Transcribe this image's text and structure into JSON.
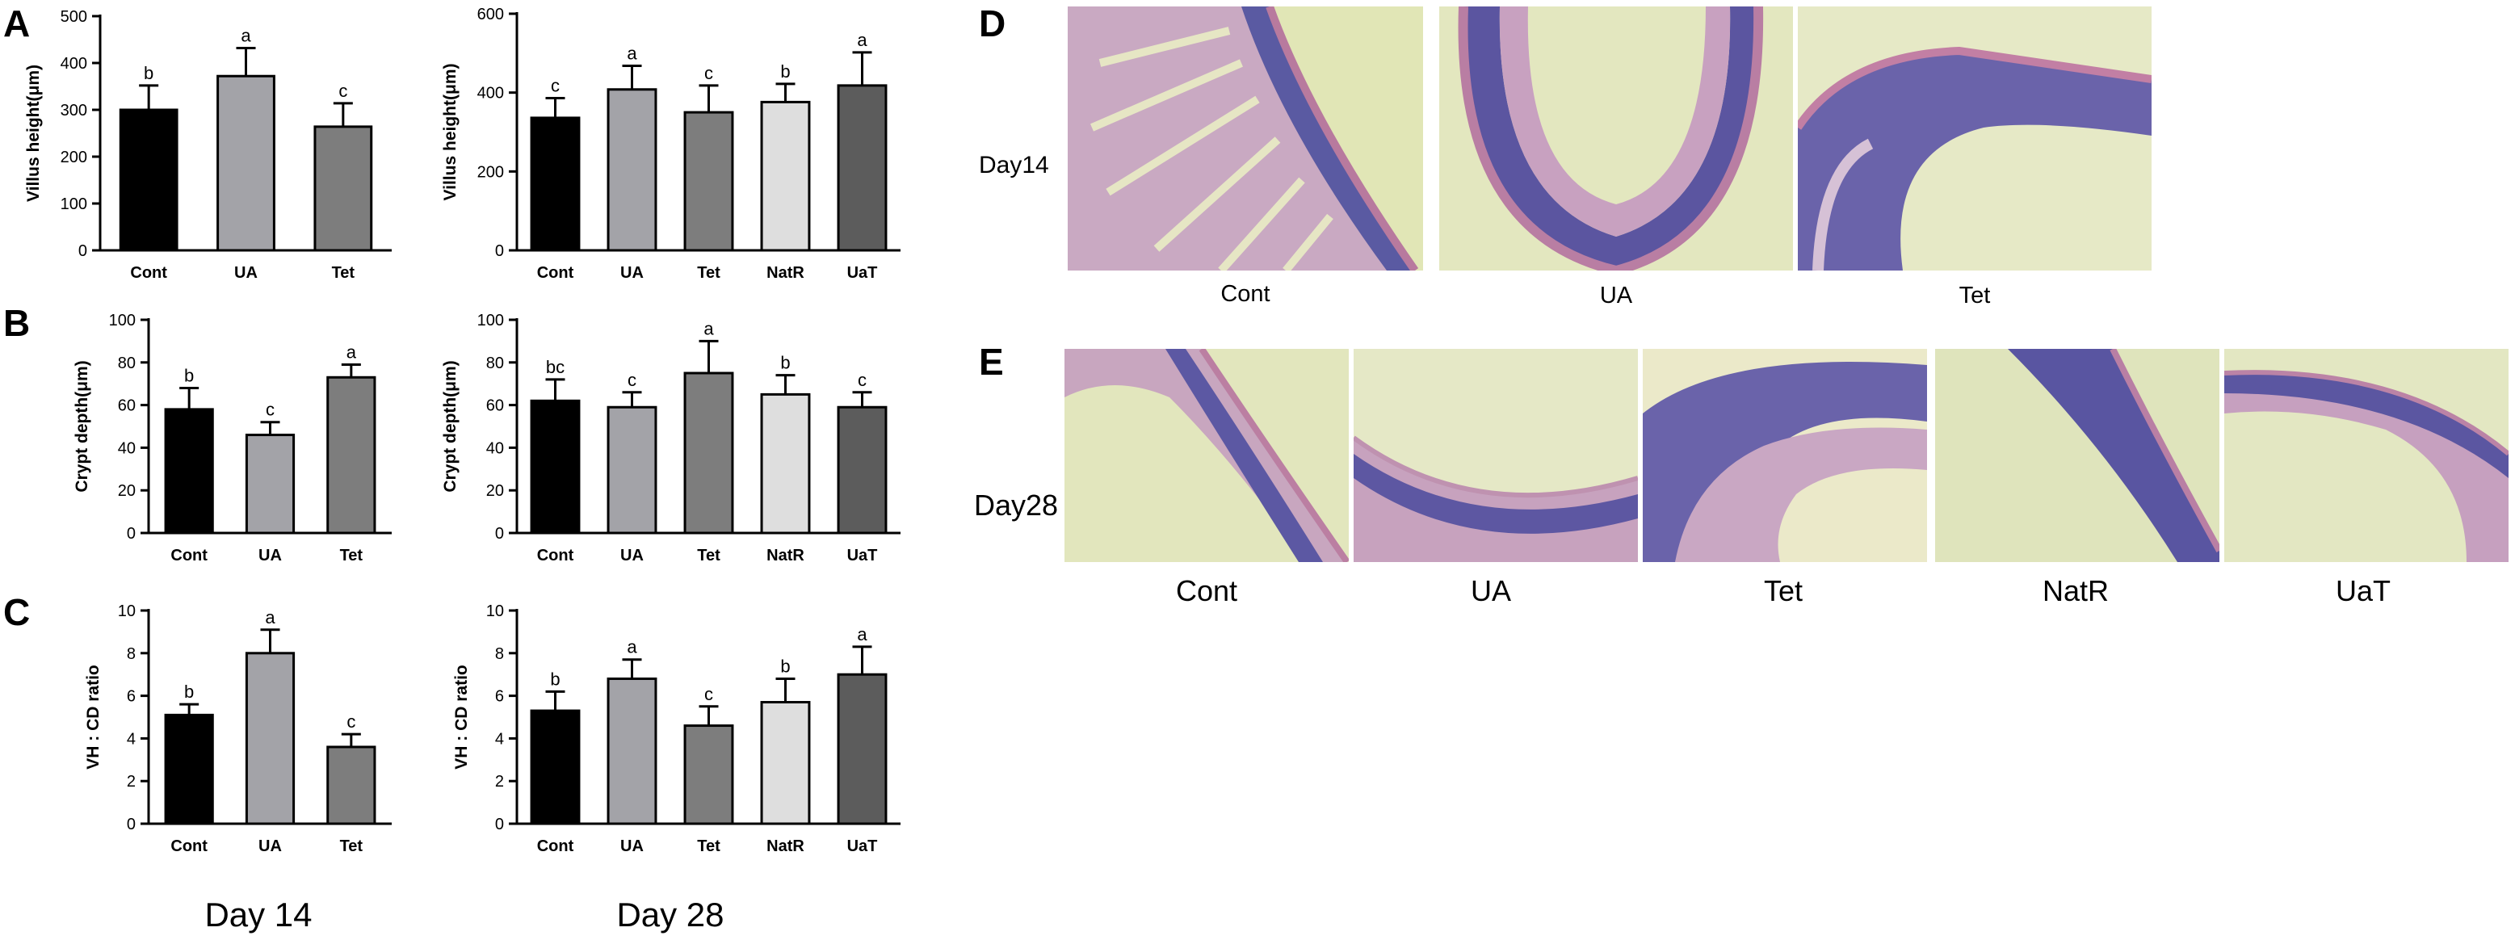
{
  "panel_letters": {
    "A": "A",
    "B": "B",
    "C": "C",
    "D": "D",
    "E": "E"
  },
  "day_labels": {
    "left": "Day 14",
    "right": "Day 28"
  },
  "colors": {
    "Cont": "#000000",
    "UA": "#a3a3a8",
    "Tet": "#7d7d7d",
    "NatR": "#dedede",
    "UaT": "#5c5c5c"
  },
  "chart_data": [
    {
      "type": "bar",
      "panel": "A",
      "day": "Day 14",
      "categories": [
        "Cont",
        "UA",
        "Tet"
      ],
      "values": [
        300,
        372,
        264
      ],
      "errors": [
        52,
        60,
        50
      ],
      "sig_letters": [
        "b",
        "a",
        "c"
      ],
      "ylabel": "Villus height(μm)",
      "ylim": [
        0,
        500
      ],
      "yticks": [
        0,
        100,
        200,
        300,
        400,
        500
      ],
      "ytick_labels": [
        "0",
        "100",
        "200",
        "300",
        "400",
        "500"
      ]
    },
    {
      "type": "bar",
      "panel": "A",
      "day": "Day 28",
      "categories": [
        "Cont",
        "UA",
        "Tet",
        "NatR",
        "UaT"
      ],
      "values": [
        336,
        408,
        350,
        376,
        418
      ],
      "errors": [
        50,
        60,
        68,
        46,
        84
      ],
      "sig_letters": [
        "c",
        "a",
        "c",
        "b",
        "a"
      ],
      "ylabel": "Villus height(μm)",
      "ylim": [
        0,
        600
      ],
      "yticks": [
        0,
        200,
        400,
        600
      ],
      "ytick_labels": [
        "0",
        "200",
        "400",
        "600"
      ]
    },
    {
      "type": "bar",
      "panel": "B",
      "day": "Day 14",
      "categories": [
        "Cont",
        "UA",
        "Tet"
      ],
      "values": [
        58,
        46,
        73
      ],
      "errors": [
        10,
        6,
        6
      ],
      "sig_letters": [
        "b",
        "c",
        "a"
      ],
      "ylabel": "Crypt depth(μm)",
      "ylim": [
        0,
        100
      ],
      "yticks": [
        0,
        20,
        40,
        60,
        80,
        100
      ],
      "ytick_labels": [
        "0",
        "20",
        "40",
        "60",
        "80",
        "100"
      ]
    },
    {
      "type": "bar",
      "panel": "B",
      "day": "Day 28",
      "categories": [
        "Cont",
        "UA",
        "Tet",
        "NatR",
        "UaT"
      ],
      "values": [
        62,
        59,
        75,
        65,
        59
      ],
      "errors": [
        10,
        7,
        15,
        9,
        7
      ],
      "sig_letters": [
        "bc",
        "c",
        "a",
        "b",
        "c"
      ],
      "ylabel": "Crypt depth(μm)",
      "ylim": [
        0,
        100
      ],
      "yticks": [
        0,
        20,
        40,
        60,
        80,
        100
      ],
      "ytick_labels": [
        "0",
        "20",
        "40",
        "60",
        "80",
        "100"
      ]
    },
    {
      "type": "bar",
      "panel": "C",
      "day": "Day 14",
      "categories": [
        "Cont",
        "UA",
        "Tet"
      ],
      "values": [
        5.1,
        8.0,
        3.6
      ],
      "errors": [
        0.5,
        1.1,
        0.6
      ],
      "sig_letters": [
        "b",
        "a",
        "c"
      ],
      "ylabel": "VH : CD ratio",
      "ylim": [
        0,
        10
      ],
      "yticks": [
        0,
        2,
        4,
        6,
        8,
        10
      ],
      "ytick_labels": [
        "0",
        "2",
        "4",
        "6",
        "8",
        "10"
      ]
    },
    {
      "type": "bar",
      "panel": "C",
      "day": "Day 28",
      "categories": [
        "Cont",
        "UA",
        "Tet",
        "NatR",
        "UaT"
      ],
      "values": [
        5.3,
        6.8,
        4.6,
        5.7,
        7.0
      ],
      "errors": [
        0.9,
        0.9,
        0.9,
        1.1,
        1.3
      ],
      "sig_letters": [
        "b",
        "a",
        "c",
        "b",
        "a"
      ],
      "ylabel": "VH : CD ratio",
      "ylim": [
        0,
        10
      ],
      "yticks": [
        0,
        2,
        4,
        6,
        8,
        10
      ],
      "ytick_labels": [
        "0",
        "2",
        "4",
        "6",
        "8",
        "10"
      ]
    }
  ],
  "micrographs": {
    "D": {
      "day_label": "Day14",
      "captions": [
        "Cont",
        "UA",
        "Tet"
      ]
    },
    "E": {
      "day_label": "Day28",
      "captions": [
        "Cont",
        "UA",
        "Tet",
        "NatR",
        "UaT"
      ]
    }
  }
}
